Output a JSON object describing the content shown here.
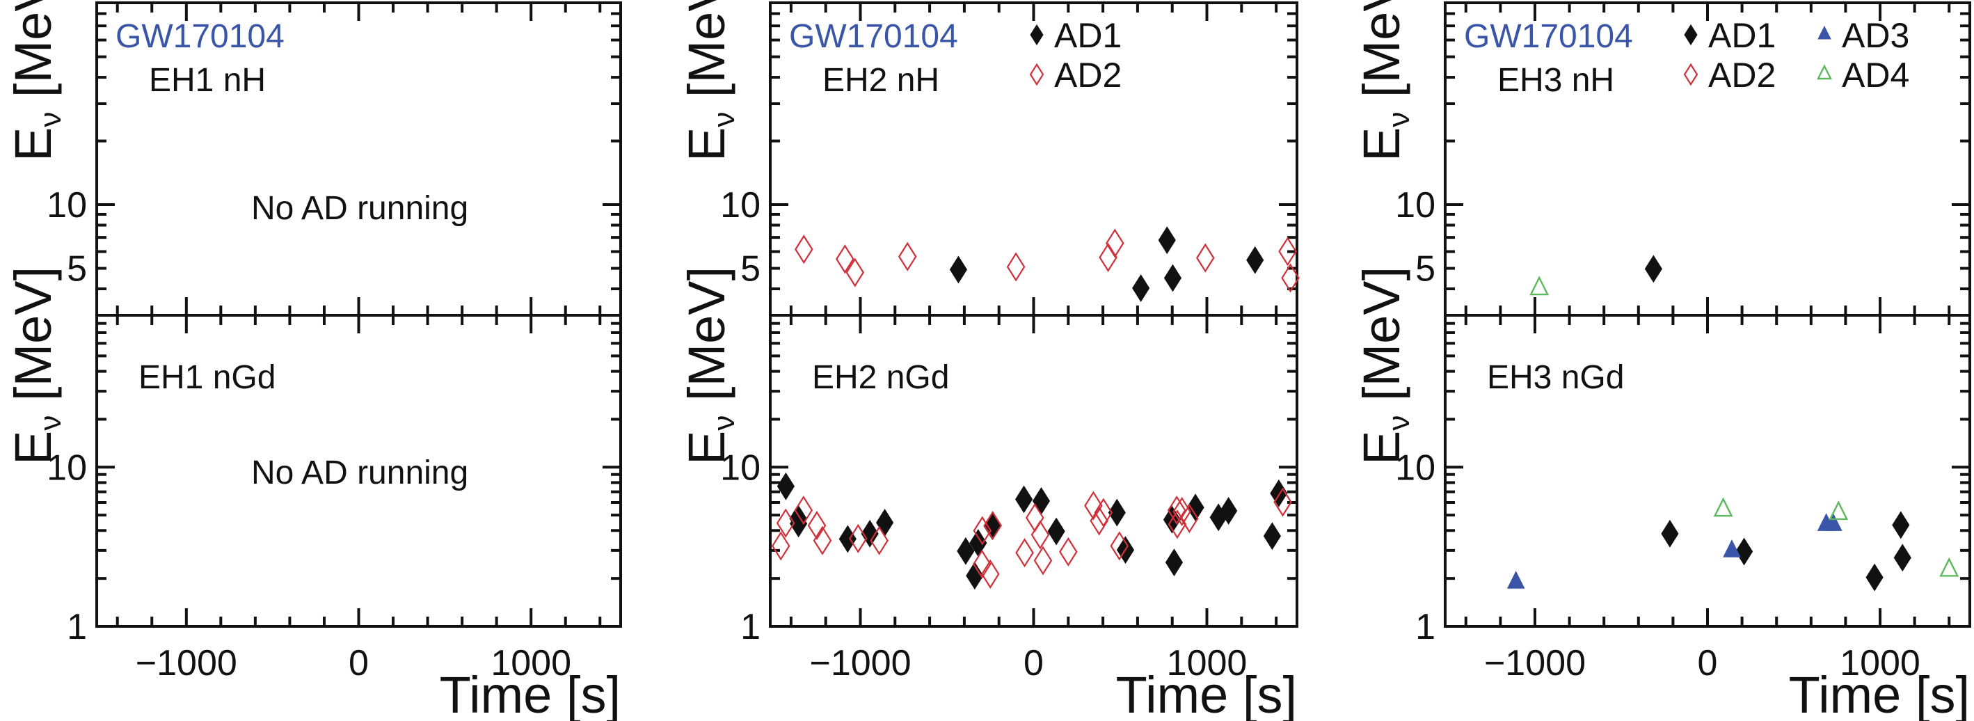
{
  "colors": {
    "event_label": "#3a55a8",
    "AD1": "#111111",
    "AD2": "#d0303a",
    "AD3": "#3a55a8",
    "AD4": "#5cb85c"
  },
  "chart_data": {
    "type": "scatter",
    "title": "",
    "xlabel": "Time [s]",
    "ylabel": "E_ν [MeV]",
    "ylabel_main": "E",
    "ylabel_sub": "ν",
    "ylabel_unit": " [MeV]",
    "xlim": [
      -1520,
      1520
    ],
    "x_ticks": [
      -1000,
      0,
      1000
    ],
    "x_tick_labels": [
      "−1000",
      "0",
      "1000"
    ],
    "x_minor_step": 200,
    "yscale": "log",
    "grid": false,
    "event": "GW170104",
    "legend_entries": {
      "AD1": {
        "label": "AD1",
        "marker": "filled-diamond"
      },
      "AD2": {
        "label": "AD2",
        "marker": "open-diamond"
      },
      "AD3": {
        "label": "AD3",
        "marker": "filled-triangle"
      },
      "AD4": {
        "label": "AD4",
        "marker": "open-triangle"
      }
    },
    "panels": [
      {
        "id": "eh1-nh",
        "column": 0,
        "row": "top",
        "hall_label": "EH1 nH",
        "ylim": [
          3,
          90
        ],
        "y_ticks": [
          10,
          5
        ],
        "y_tick_labels": [
          "10",
          "5"
        ],
        "note": "No AD running",
        "show_event": true,
        "legend": [],
        "series": []
      },
      {
        "id": "eh1-ngd",
        "column": 0,
        "row": "bottom",
        "hall_label": "EH1 nGd",
        "ylim": [
          1,
          90
        ],
        "y_ticks": [
          10,
          1
        ],
        "y_tick_labels": [
          "10",
          "1"
        ],
        "note": "No AD running",
        "show_event": false,
        "legend": [],
        "series": []
      },
      {
        "id": "eh2-nh",
        "column": 1,
        "row": "top",
        "hall_label": "EH2 nH",
        "ylim": [
          3,
          90
        ],
        "y_ticks": [
          10,
          5
        ],
        "y_tick_labels": [
          "10",
          "5"
        ],
        "note": "",
        "show_event": true,
        "legend": [
          [
            "AD1"
          ],
          [
            "AD2"
          ]
        ],
        "series": [
          {
            "name": "AD1",
            "x": [
              -434,
              619,
              770,
              803,
              1278
            ],
            "y": [
              4.93,
              4.03,
              6.79,
              4.5,
              5.47
            ]
          },
          {
            "name": "AD2",
            "x": [
              -1326,
              -1089,
              -1031,
              -728,
              -102,
              430,
              469,
              991,
              1466,
              1482
            ],
            "y": [
              6.15,
              5.53,
              4.78,
              5.68,
              5.08,
              5.63,
              6.57,
              5.6,
              6.01,
              4.5
            ]
          }
        ]
      },
      {
        "id": "eh2-ngd",
        "column": 1,
        "row": "bottom",
        "hall_label": "EH2 nGd",
        "ylim": [
          1,
          90
        ],
        "y_ticks": [
          10,
          1
        ],
        "y_tick_labels": [
          "10",
          "1"
        ],
        "note": "",
        "show_event": false,
        "legend": [],
        "series": [
          {
            "name": "AD1",
            "x": [
              -1430,
              -1359,
              -1357,
              -1073,
              -945,
              -859,
              -392,
              -340,
              -320,
              -239,
              -56,
              44,
              131,
              481,
              530,
              799,
              811,
              934,
              1067,
              1125,
              1377,
              1415
            ],
            "y": [
              7.58,
              4.76,
              4.42,
              3.54,
              3.82,
              4.48,
              2.97,
              2.08,
              3.34,
              4.27,
              6.28,
              6.13,
              3.95,
              5.18,
              3.02,
              4.68,
              2.52,
              5.58,
              4.84,
              5.32,
              3.69,
              6.85
            ]
          },
          {
            "name": "AD2",
            "x": [
              -1459,
              -1431,
              -1328,
              -1251,
              -1219,
              -1013,
              -891,
              -298,
              -296,
              -250,
              -236,
              -52,
              7,
              38,
              54,
              200,
              345,
              378,
              403,
              495,
              826,
              829,
              856,
              899,
              1438
            ],
            "y": [
              3.2,
              4.45,
              5.36,
              4.3,
              3.46,
              3.56,
              3.46,
              2.46,
              3.99,
              2.13,
              4.3,
              2.9,
              4.81,
              3.76,
              2.59,
              2.94,
              5.73,
              4.6,
              5.18,
              3.2,
              5.36,
              4.38,
              5.26,
              4.76,
              6.03
            ]
          }
        ]
      },
      {
        "id": "eh3-nh",
        "column": 2,
        "row": "top",
        "hall_label": "EH3 nH",
        "ylim": [
          3,
          90
        ],
        "y_ticks": [
          10,
          5
        ],
        "y_tick_labels": [
          "10",
          "5"
        ],
        "note": "",
        "show_event": true,
        "legend": [
          [
            "AD1",
            "AD3"
          ],
          [
            "AD2",
            "AD4"
          ]
        ],
        "series": [
          {
            "name": "AD1",
            "x": [
              -313
            ],
            "y": [
              4.97
            ]
          },
          {
            "name": "AD4",
            "x": [
              -975
            ],
            "y": [
              4.0
            ]
          }
        ]
      },
      {
        "id": "eh3-ngd",
        "column": 2,
        "row": "bottom",
        "hall_label": "EH3 nGd",
        "ylim": [
          1,
          90
        ],
        "y_ticks": [
          10,
          1
        ],
        "y_tick_labels": [
          "10",
          "1"
        ],
        "note": "",
        "show_event": false,
        "legend": [],
        "series": [
          {
            "name": "AD1",
            "x": [
              -218,
              212,
              968,
              1120,
              1130
            ],
            "y": [
              3.82,
              2.95,
              2.03,
              4.33,
              2.7
            ]
          },
          {
            "name": "AD3",
            "x": [
              -1110,
              141,
              688,
              729
            ],
            "y": [
              1.88,
              2.96,
              4.33,
              4.33
            ]
          },
          {
            "name": "AD4",
            "x": [
              91,
              759,
              1400
            ],
            "y": [
              5.36,
              5.11,
              2.25
            ]
          }
        ]
      }
    ]
  }
}
